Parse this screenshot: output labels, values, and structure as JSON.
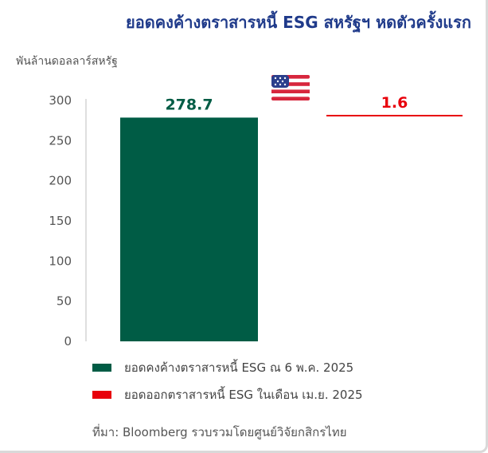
{
  "title": "ยอดคงค้างตราสารหนี้ ESG สหรัฐฯ หดตัวครั้งแรก",
  "colors": {
    "title": "#1f3a8a",
    "outstanding": "#005c45",
    "issuance": "#e8000b"
  },
  "icons": {
    "flag": "us-flag-icon"
  },
  "chart_data": {
    "type": "bar",
    "ylabel": "พันล้านดอลลาร์สหรัฐ",
    "ylim": [
      0,
      300
    ],
    "yticks": [
      0,
      50,
      100,
      150,
      200,
      250,
      300
    ],
    "grid": false,
    "legend_position": "bottom",
    "series": [
      {
        "name": "ยอดคงค้างตราสารหนี้ ESG ณ 6 พ.ค. 2025",
        "value": 278.7,
        "label": "278.7",
        "color": "#005c45"
      },
      {
        "name": "ยอดออกตราสารหนี้ ESG ในเดือน เม.ย. 2025",
        "value": 1.6,
        "label": "1.6",
        "color": "#e8000b"
      }
    ]
  },
  "source": "ที่มา: Bloomberg รวบรวมโดยศูนย์วิจัยกสิกรไทย"
}
